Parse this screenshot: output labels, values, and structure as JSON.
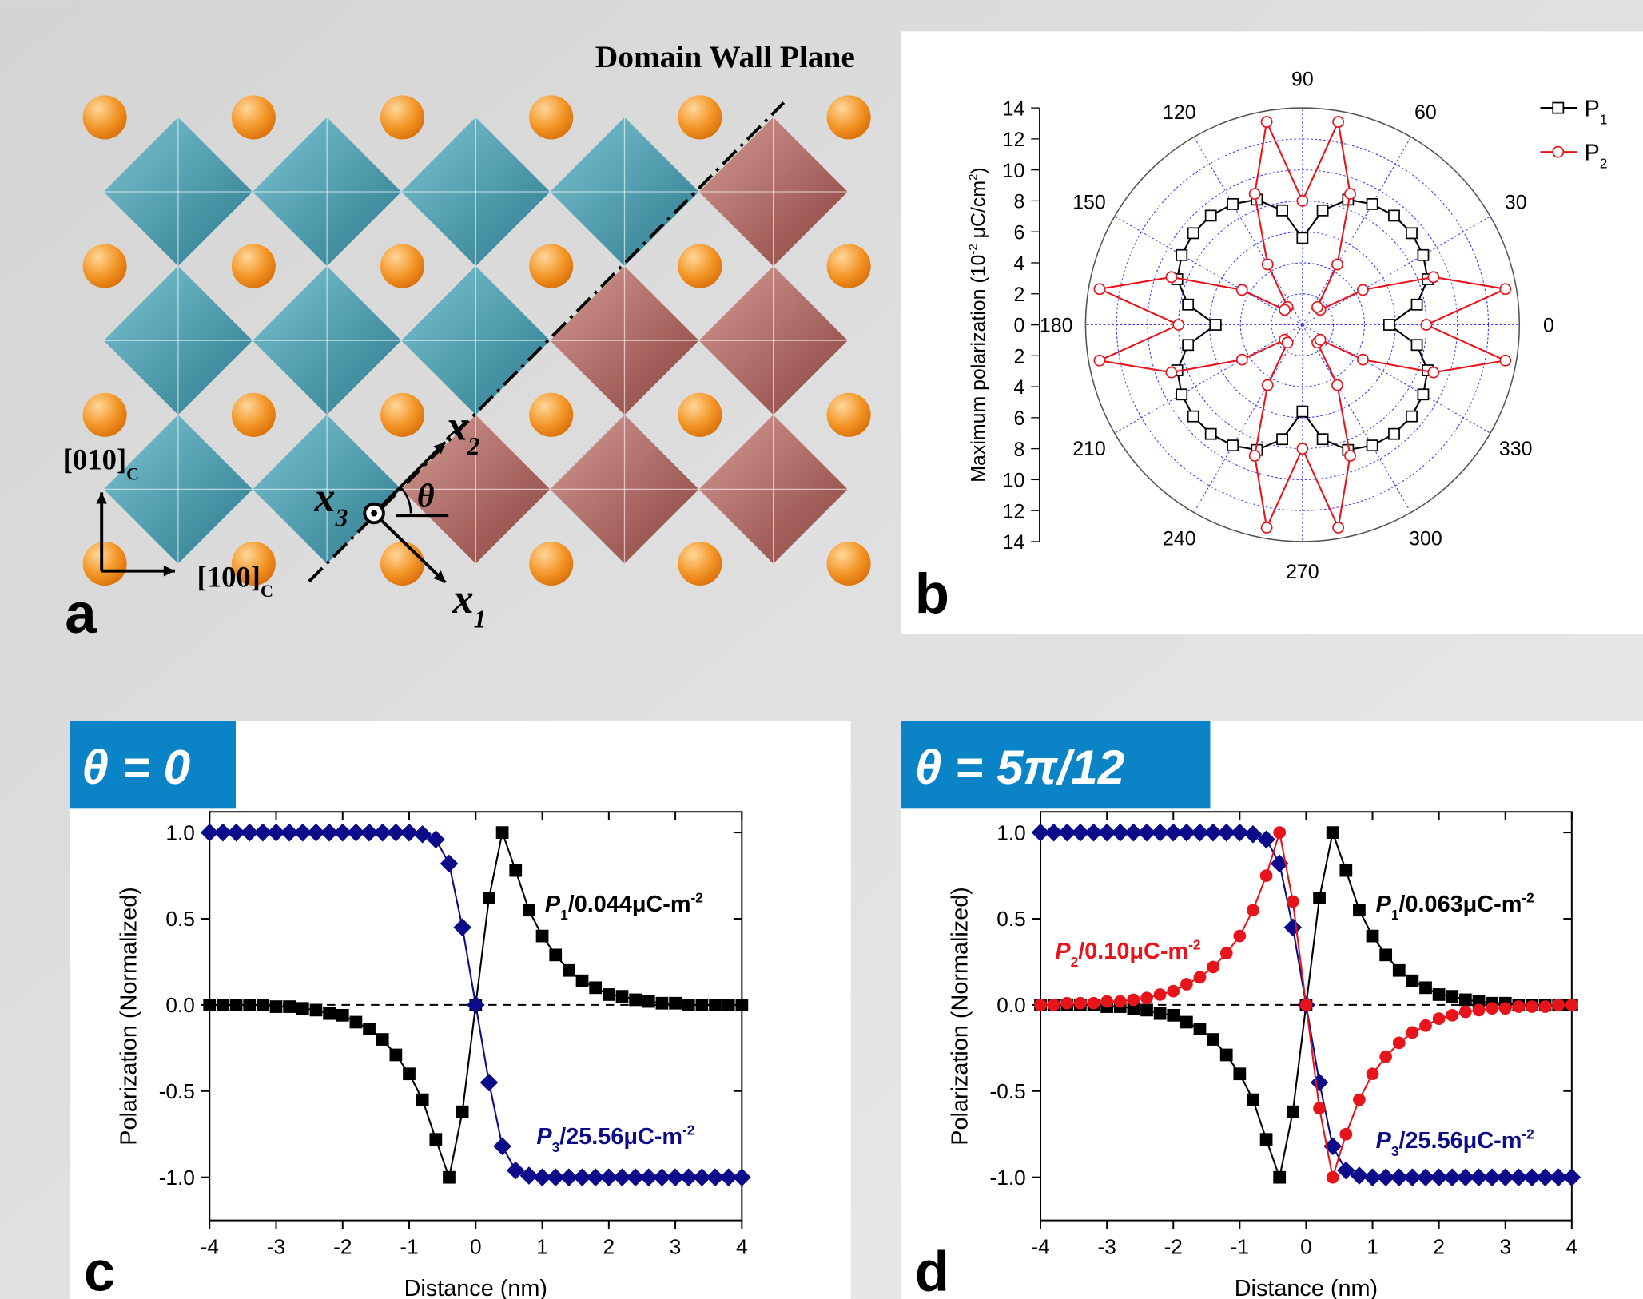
{
  "panel_a": {
    "label": "a",
    "wall_label": "Domain Wall Plane",
    "axis_y": {
      "text": "[010]",
      "subscript": "C"
    },
    "axis_x": {
      "text": "[100]",
      "subscript": "C"
    },
    "x1": {
      "text": "x",
      "subscript": "1"
    },
    "x2": {
      "text": "x",
      "subscript": "2"
    },
    "x3": {
      "text": "x",
      "subscript": "3"
    },
    "angle": "θ"
  },
  "chart_data": [
    {
      "type": "polar",
      "label": "b",
      "r_label": [
        {
          "text": "Maximum polarization (10"
        },
        {
          "text": "-2",
          "position": "super"
        },
        {
          "text": " μC/cm"
        },
        {
          "text": "2",
          "position": "super"
        },
        {
          "text": ")"
        }
      ],
      "rlim": [
        0,
        14
      ],
      "rticks": [
        0,
        2,
        4,
        6,
        8,
        10,
        12,
        14
      ],
      "aticks": [
        0,
        30,
        60,
        90,
        120,
        150,
        180,
        210,
        240,
        270,
        300,
        330
      ],
      "grid": true,
      "grid_color": "#3a3aff",
      "theta": [
        0,
        10,
        20,
        30,
        40,
        50,
        60,
        70,
        80,
        90,
        100,
        110,
        120,
        130,
        140,
        150,
        160,
        170,
        180,
        190,
        200,
        210,
        220,
        230,
        240,
        250,
        260,
        270,
        280,
        290,
        300,
        310,
        320,
        330,
        340,
        350
      ],
      "series": [
        {
          "name": "P",
          "name_subscript": "1",
          "color": "#000000",
          "marker": "square",
          "filled": false,
          "values": [
            5.6,
            7.5,
            8.6,
            9.0,
            9.2,
            9.2,
            9.0,
            8.6,
            7.5,
            5.6,
            7.5,
            8.6,
            9.0,
            9.2,
            9.2,
            9.0,
            8.6,
            7.5,
            5.6,
            7.5,
            8.6,
            9.0,
            9.2,
            9.2,
            9.0,
            8.6,
            7.5,
            5.6,
            7.5,
            8.6,
            9.0,
            9.2,
            9.2,
            9.0,
            8.6,
            7.5
          ]
        },
        {
          "name": "P",
          "name_subscript": "2",
          "color": "#e8141b",
          "marker": "circle",
          "filled": false,
          "values": [
            8.0,
            13.3,
            9.0,
            4.5,
            1.5,
            1.5,
            4.5,
            9.0,
            13.3,
            8.0,
            13.3,
            9.0,
            4.5,
            1.5,
            1.5,
            4.5,
            9.0,
            13.3,
            8.0,
            13.3,
            9.0,
            4.5,
            1.5,
            1.5,
            4.5,
            9.0,
            13.3,
            8.0,
            13.3,
            9.0,
            4.5,
            1.5,
            1.5,
            4.5,
            9.0,
            13.3
          ]
        }
      ]
    },
    {
      "type": "line",
      "title": "θ = 0",
      "label": "c",
      "xlabel": "Distance (nm)",
      "ylabel": "Polarization (Normalized)",
      "x": [
        -4,
        -3.8,
        -3.6,
        -3.4,
        -3.2,
        -3,
        -2.8,
        -2.6,
        -2.4,
        -2.2,
        -2,
        -1.8,
        -1.6,
        -1.4,
        -1.2,
        -1,
        -0.8,
        -0.6,
        -0.4,
        -0.2,
        0,
        0.2,
        0.4,
        0.6,
        0.8,
        1,
        1.2,
        1.4,
        1.6,
        1.8,
        2,
        2.2,
        2.4,
        2.6,
        2.8,
        3,
        3.2,
        3.4,
        3.6,
        3.8,
        4
      ],
      "xlim": [
        -4,
        4
      ],
      "xticks": [
        -4,
        -3,
        -2,
        -1,
        0,
        1,
        2,
        3,
        4
      ],
      "ylim": [
        -1.25,
        1.12
      ],
      "yticks": [
        {
          "value": -1,
          "label": "-1.0"
        },
        {
          "value": -0.5,
          "label": "-0.5"
        },
        {
          "value": 0,
          "label": "0.0"
        },
        {
          "value": 0.5,
          "label": "0.5"
        },
        {
          "value": 1,
          "label": "1.0"
        }
      ],
      "zero_line": true,
      "series": [
        {
          "color": "#000000",
          "marker": "square",
          "filled": true,
          "values": [
            0,
            0,
            0,
            0,
            0,
            -0.01,
            -0.01,
            -0.02,
            -0.03,
            -0.05,
            -0.06,
            -0.1,
            -0.14,
            -0.2,
            -0.29,
            -0.4,
            -0.55,
            -0.78,
            -1,
            -0.62,
            0,
            0.62,
            1,
            0.78,
            0.55,
            0.4,
            0.29,
            0.2,
            0.14,
            0.1,
            0.06,
            0.05,
            0.03,
            0.02,
            0.01,
            0.01,
            0,
            0,
            0,
            0,
            0
          ]
        },
        {
          "color": "#0c0c8a",
          "marker": "diamond",
          "filled": true,
          "values": [
            1,
            1,
            1,
            1,
            1,
            1,
            1,
            1,
            1,
            1,
            1,
            1,
            1,
            1,
            1,
            1,
            0.99,
            0.96,
            0.82,
            0.45,
            0,
            -0.45,
            -0.82,
            -0.96,
            -0.99,
            -1,
            -1,
            -1,
            -1,
            -1,
            -1,
            -1,
            -1,
            -1,
            -1,
            -1,
            -1,
            -1,
            -1,
            -1,
            -1
          ]
        }
      ],
      "annotations": [
        {
          "color": "#000000",
          "parts": [
            {
              "text": "P",
              "style": "italic"
            },
            {
              "text": "1",
              "position": "sub"
            },
            {
              "text": "/0.044μC-m"
            },
            {
              "text": "-2",
              "position": "super"
            }
          ]
        },
        {
          "color": "#0c0c8a",
          "parts": [
            {
              "text": "P",
              "style": "italic"
            },
            {
              "text": "3",
              "position": "sub"
            },
            {
              "text": "/25.56μC-m"
            },
            {
              "text": "-2",
              "position": "super"
            }
          ]
        }
      ]
    },
    {
      "type": "line",
      "title": "θ = 5π/12",
      "label": "d",
      "xlabel": "Distance (nm)",
      "ylabel": "Polarization (Normalized)",
      "x": [
        -4,
        -3.8,
        -3.6,
        -3.4,
        -3.2,
        -3,
        -2.8,
        -2.6,
        -2.4,
        -2.2,
        -2,
        -1.8,
        -1.6,
        -1.4,
        -1.2,
        -1,
        -0.8,
        -0.6,
        -0.4,
        -0.2,
        0,
        0.2,
        0.4,
        0.6,
        0.8,
        1,
        1.2,
        1.4,
        1.6,
        1.8,
        2,
        2.2,
        2.4,
        2.6,
        2.8,
        3,
        3.2,
        3.4,
        3.6,
        3.8,
        4
      ],
      "xlim": [
        -4,
        4
      ],
      "xticks": [
        -4,
        -3,
        -2,
        -1,
        0,
        1,
        2,
        3,
        4
      ],
      "ylim": [
        -1.25,
        1.12
      ],
      "yticks": [
        {
          "value": -1,
          "label": "-1.0"
        },
        {
          "value": -0.5,
          "label": "-0.5"
        },
        {
          "value": 0,
          "label": "0.0"
        },
        {
          "value": 0.5,
          "label": "0.5"
        },
        {
          "value": 1,
          "label": "1.0"
        }
      ],
      "zero_line": true,
      "series": [
        {
          "color": "#000000",
          "marker": "square",
          "filled": true,
          "values": [
            0,
            0,
            0,
            0,
            0,
            -0.01,
            -0.01,
            -0.02,
            -0.03,
            -0.05,
            -0.06,
            -0.1,
            -0.14,
            -0.2,
            -0.29,
            -0.4,
            -0.55,
            -0.78,
            -1,
            -0.62,
            0,
            0.62,
            1,
            0.78,
            0.55,
            0.4,
            0.29,
            0.2,
            0.14,
            0.1,
            0.06,
            0.05,
            0.03,
            0.02,
            0.01,
            0.01,
            0,
            0,
            0,
            0,
            0
          ]
        },
        {
          "color": "#0c0c8a",
          "marker": "diamond",
          "filled": true,
          "values": [
            1,
            1,
            1,
            1,
            1,
            1,
            1,
            1,
            1,
            1,
            1,
            1,
            1,
            1,
            1,
            1,
            0.99,
            0.96,
            0.82,
            0.45,
            0,
            -0.45,
            -0.82,
            -0.96,
            -0.99,
            -1,
            -1,
            -1,
            -1,
            -1,
            -1,
            -1,
            -1,
            -1,
            -1,
            -1,
            -1,
            -1,
            -1,
            -1,
            -1
          ]
        },
        {
          "color": "#e8141b",
          "marker": "circle",
          "filled": true,
          "values": [
            0,
            0,
            0.01,
            0.01,
            0.01,
            0.02,
            0.02,
            0.03,
            0.04,
            0.06,
            0.08,
            0.12,
            0.16,
            0.22,
            0.3,
            0.4,
            0.55,
            0.75,
            1,
            0.6,
            0,
            -0.6,
            -1,
            -0.75,
            -0.55,
            -0.4,
            -0.3,
            -0.22,
            -0.16,
            -0.12,
            -0.08,
            -0.06,
            -0.04,
            -0.03,
            -0.02,
            -0.02,
            -0.01,
            -0.01,
            -0.01,
            0,
            0
          ]
        }
      ],
      "annotations": [
        {
          "color": "#000000",
          "parts": [
            {
              "text": "P",
              "style": "italic"
            },
            {
              "text": "1",
              "position": "sub"
            },
            {
              "text": "/0.063μC-m"
            },
            {
              "text": "-2",
              "position": "super"
            }
          ]
        },
        {
          "color": "#e8141b",
          "parts": [
            {
              "text": "P",
              "style": "italic"
            },
            {
              "text": "2",
              "position": "sub"
            },
            {
              "text": "/0.10μC-m"
            },
            {
              "text": "-2",
              "position": "super"
            }
          ]
        },
        {
          "color": "#0c0c8a",
          "parts": [
            {
              "text": "P",
              "style": "italic"
            },
            {
              "text": "3",
              "position": "sub"
            },
            {
              "text": "/25.56μC-m"
            },
            {
              "text": "-2",
              "position": "super"
            }
          ]
        }
      ]
    }
  ]
}
